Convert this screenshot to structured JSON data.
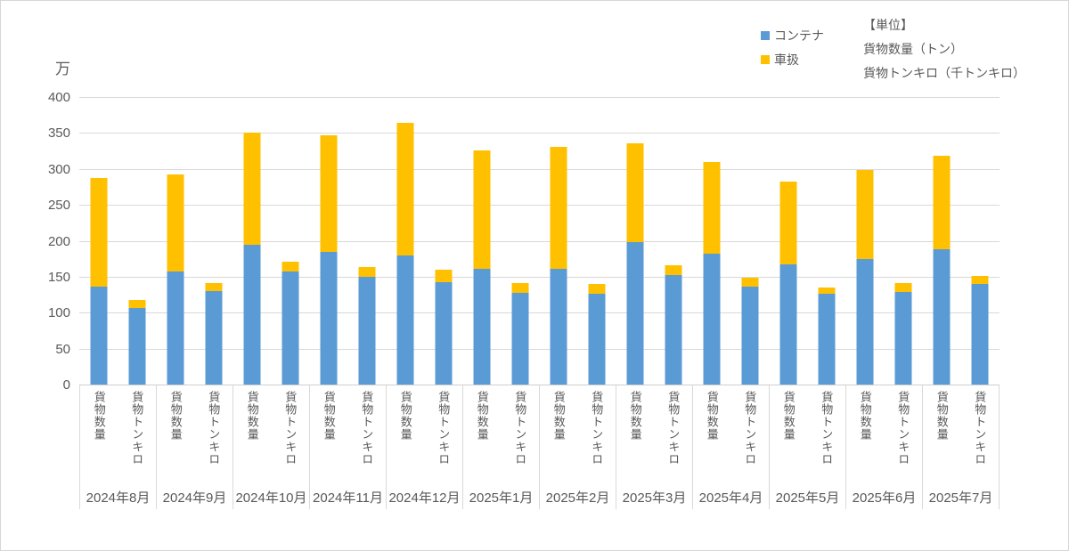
{
  "legend": {
    "items": [
      {
        "label": "コンテナ",
        "color": "#5B9BD5"
      },
      {
        "label": "車扱",
        "color": "#FFC000"
      }
    ]
  },
  "unit_note": {
    "line1": "【単位】",
    "line2": "貨物数量（トン）",
    "line3": "貨物トンキロ（千トンキロ）"
  },
  "chart_data": {
    "type": "bar",
    "stacked": true,
    "title": "",
    "ylabel": "万",
    "ylim": [
      0,
      400
    ],
    "ytick_step": 50,
    "grid": true,
    "legend_position": "top-right",
    "bar_labels": [
      "貨物数量",
      "貨物トンキロ"
    ],
    "series": [
      {
        "name": "コンテナ",
        "key": "container",
        "color": "#5B9BD5"
      },
      {
        "name": "車扱",
        "key": "wagon",
        "color": "#FFC000"
      }
    ],
    "groups": [
      {
        "month": "2024年8月",
        "bars": [
          {
            "label": "貨物数量",
            "container": 137,
            "wagon": 151
          },
          {
            "label": "貨物トンキロ",
            "container": 108,
            "wagon": 11
          }
        ]
      },
      {
        "month": "2024年9月",
        "bars": [
          {
            "label": "貨物数量",
            "container": 159,
            "wagon": 135
          },
          {
            "label": "貨物トンキロ",
            "container": 131,
            "wagon": 11
          }
        ]
      },
      {
        "month": "2024年10月",
        "bars": [
          {
            "label": "貨物数量",
            "container": 196,
            "wagon": 156
          },
          {
            "label": "貨物トンキロ",
            "container": 158,
            "wagon": 14
          }
        ]
      },
      {
        "month": "2024年11月",
        "bars": [
          {
            "label": "貨物数量",
            "container": 186,
            "wagon": 162
          },
          {
            "label": "貨物トンキロ",
            "container": 151,
            "wagon": 14
          }
        ]
      },
      {
        "month": "2024年12月",
        "bars": [
          {
            "label": "貨物数量",
            "container": 181,
            "wagon": 184
          },
          {
            "label": "貨物トンキロ",
            "container": 144,
            "wagon": 17
          }
        ]
      },
      {
        "month": "2025年1月",
        "bars": [
          {
            "label": "貨物数量",
            "container": 162,
            "wagon": 165
          },
          {
            "label": "貨物トンキロ",
            "container": 129,
            "wagon": 14
          }
        ]
      },
      {
        "month": "2025年2月",
        "bars": [
          {
            "label": "貨物数量",
            "container": 162,
            "wagon": 170
          },
          {
            "label": "貨物トンキロ",
            "container": 128,
            "wagon": 13
          }
        ]
      },
      {
        "month": "2025年3月",
        "bars": [
          {
            "label": "貨物数量",
            "container": 199,
            "wagon": 138
          },
          {
            "label": "貨物トンキロ",
            "container": 153,
            "wagon": 14
          }
        ]
      },
      {
        "month": "2025年4月",
        "bars": [
          {
            "label": "貨物数量",
            "container": 183,
            "wagon": 128
          },
          {
            "label": "貨物トンキロ",
            "container": 138,
            "wagon": 12
          }
        ]
      },
      {
        "month": "2025年5月",
        "bars": [
          {
            "label": "貨物数量",
            "container": 168,
            "wagon": 116
          },
          {
            "label": "貨物トンキロ",
            "container": 127,
            "wagon": 9
          }
        ]
      },
      {
        "month": "2025年6月",
        "bars": [
          {
            "label": "貨物数量",
            "container": 176,
            "wagon": 124
          },
          {
            "label": "貨物トンキロ",
            "container": 130,
            "wagon": 12
          }
        ]
      },
      {
        "month": "2025年7月",
        "bars": [
          {
            "label": "貨物数量",
            "container": 189,
            "wagon": 131
          },
          {
            "label": "貨物トンキロ",
            "container": 141,
            "wagon": 11
          }
        ]
      }
    ]
  }
}
